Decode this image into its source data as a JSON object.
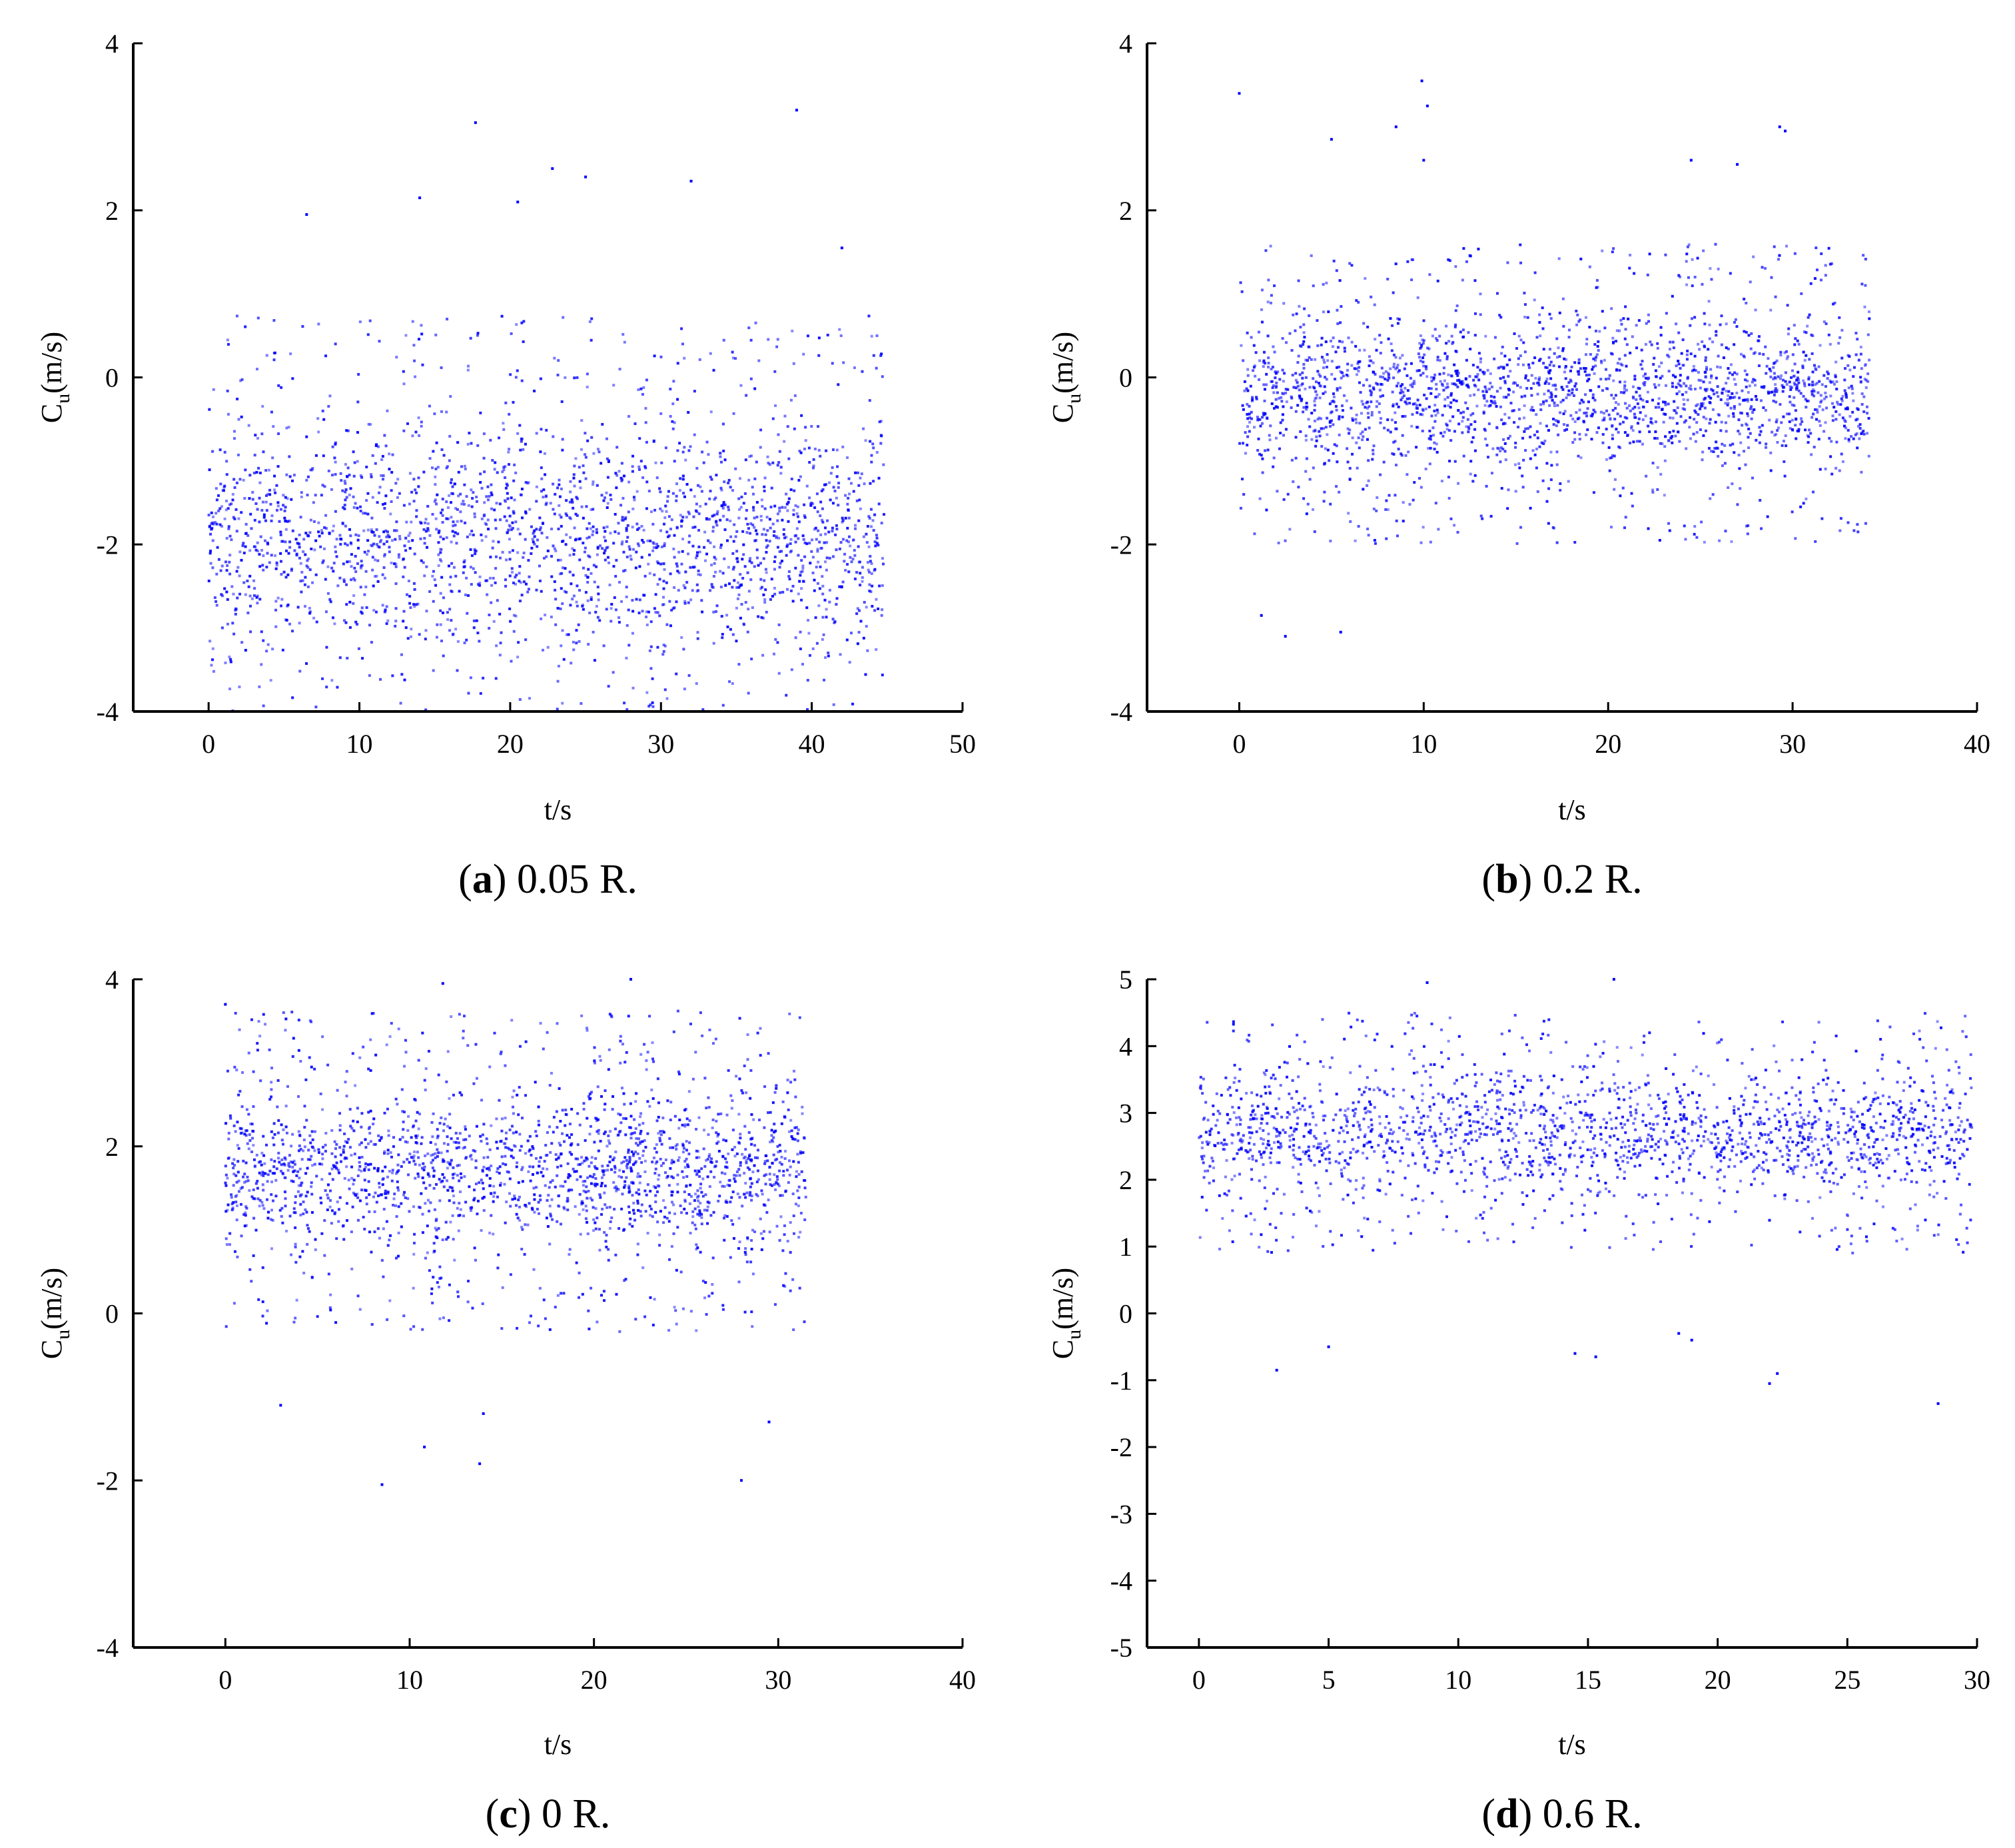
{
  "point_color": "#0000ff",
  "chart_data": [
    {
      "type": "scatter",
      "panel": "a",
      "caption_letter": "a",
      "caption_text": " 0.05 R.",
      "xlabel": "t/s",
      "ylabel_main": "C",
      "ylabel_sub": "u",
      "ylabel_unit": "(m/s)",
      "xlim": [
        -5,
        50
      ],
      "ylim": [
        -4,
        4
      ],
      "xticks": [
        0,
        10,
        20,
        30,
        40,
        50
      ],
      "yticks": [
        -4,
        -2,
        0,
        2,
        4
      ],
      "data_x_range": [
        0,
        44.8
      ],
      "band_center": -1.9,
      "band_spread": 1.1,
      "outlier_min": -4,
      "outlier_max": 3.2,
      "point_count": 2400,
      "outliers": [
        [
          17.7,
          3.05
        ],
        [
          39,
          3.2
        ],
        [
          14,
          2.15
        ],
        [
          22.8,
          2.5
        ],
        [
          25,
          2.4
        ],
        [
          32,
          2.35
        ],
        [
          20.5,
          2.1
        ],
        [
          6.5,
          1.95
        ],
        [
          42,
          1.55
        ]
      ]
    },
    {
      "type": "scatter",
      "panel": "b",
      "caption_letter": "b",
      "caption_text": " 0.2 R.",
      "xlabel": "t/s",
      "ylabel_main": "C",
      "ylabel_sub": "u",
      "ylabel_unit": "(m/s)",
      "xlim": [
        -5,
        40
      ],
      "ylim": [
        -4,
        4
      ],
      "xticks": [
        0,
        10,
        20,
        30,
        40
      ],
      "yticks": [
        -4,
        -2,
        0,
        2,
        4
      ],
      "data_x_range": [
        0,
        34.2
      ],
      "band_center": -0.2,
      "band_spread": 0.75,
      "outlier_min": -3.1,
      "outlier_max": 3.6,
      "point_count": 2200,
      "outliers": [
        [
          9.9,
          3.55
        ],
        [
          10.2,
          3.25
        ],
        [
          0,
          3.4
        ],
        [
          8.5,
          3.0
        ],
        [
          29.3,
          3.0
        ],
        [
          29.6,
          2.95
        ],
        [
          5,
          2.85
        ],
        [
          10,
          2.6
        ],
        [
          24.5,
          2.6
        ],
        [
          27,
          2.55
        ],
        [
          2.5,
          -3.1
        ],
        [
          5.5,
          -3.05
        ],
        [
          1.2,
          -2.85
        ]
      ]
    },
    {
      "type": "scatter",
      "panel": "c",
      "caption_letter": "c",
      "caption_text": " 0 R.",
      "xlabel": "t/s",
      "ylabel_main": "C",
      "ylabel_sub": "u",
      "ylabel_unit": "(m/s)",
      "xlim": [
        -5,
        40
      ],
      "ylim": [
        -4,
        4
      ],
      "xticks": [
        0,
        10,
        20,
        30,
        40
      ],
      "yticks": [
        -4,
        -2,
        0,
        2,
        4
      ],
      "data_x_range": [
        0,
        31.5
      ],
      "band_center": 1.7,
      "band_spread": 0.8,
      "outlier_min": -2.1,
      "outlier_max": 4,
      "point_count": 2000,
      "outliers": [
        [
          8.5,
          -2.05
        ],
        [
          28,
          -2.0
        ],
        [
          13.8,
          -1.8
        ],
        [
          10.8,
          -1.6
        ],
        [
          29.5,
          -1.3
        ],
        [
          14,
          -1.2
        ],
        [
          3,
          -1.1
        ],
        [
          0,
          3.7
        ],
        [
          22,
          4.0
        ],
        [
          11.8,
          3.95
        ]
      ]
    },
    {
      "type": "scatter",
      "panel": "d",
      "caption_letter": "d",
      "caption_text": " 0.6 R.",
      "xlabel": "t/s",
      "ylabel_main": "C",
      "ylabel_sub": "u",
      "ylabel_unit": "(m/s)",
      "xlim": [
        -2,
        30
      ],
      "ylim": [
        -5,
        5
      ],
      "xticks": [
        0,
        5,
        10,
        15,
        20,
        25,
        30
      ],
      "yticks": [
        -5,
        -4,
        -3,
        -2,
        -1,
        0,
        1,
        2,
        3,
        4,
        5
      ],
      "data_x_range": [
        0,
        29.8
      ],
      "band_center": 2.7,
      "band_spread": 0.75,
      "outlier_min": -1.4,
      "outlier_max": 5,
      "point_count": 2000,
      "outliers": [
        [
          28.5,
          -1.35
        ],
        [
          22,
          -1.05
        ],
        [
          22.3,
          -0.9
        ],
        [
          3,
          -0.85
        ],
        [
          18.5,
          -0.3
        ],
        [
          19,
          -0.4
        ],
        [
          5,
          -0.5
        ],
        [
          14.5,
          -0.6
        ],
        [
          15.3,
          -0.65
        ],
        [
          16,
          5.0
        ],
        [
          8.8,
          4.95
        ]
      ]
    }
  ]
}
